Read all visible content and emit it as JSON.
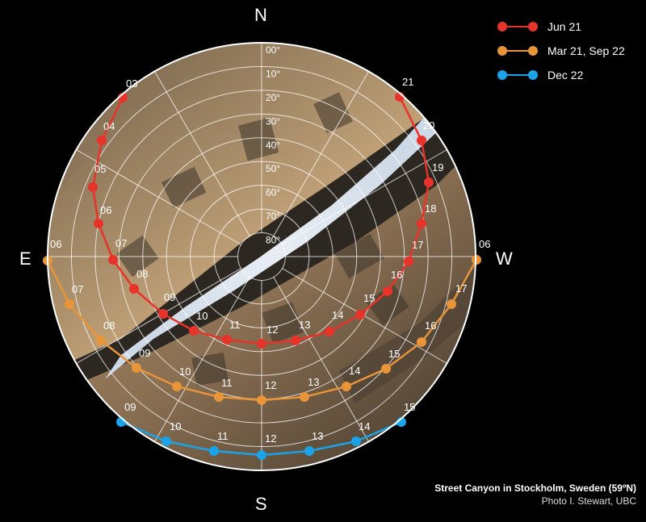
{
  "compass": {
    "north": "N",
    "south": "S",
    "east": "E",
    "west": "W"
  },
  "altitude_labels": [
    "00°",
    "10°",
    "20°",
    "30°",
    "40°",
    "50°",
    "60°",
    "70°",
    "80°"
  ],
  "legend": [
    {
      "label": "Jun 21",
      "color": "#e8332b"
    },
    {
      "label": "Mar 21, Sep 22",
      "color": "#e8953a"
    },
    {
      "label": "Dec 22",
      "color": "#1aa3e8"
    }
  ],
  "sun_paths": {
    "jun": {
      "color": "#e8332b",
      "hours": [
        "03",
        "04",
        "05",
        "06",
        "07",
        "08",
        "09",
        "10",
        "11",
        "12",
        "13",
        "14",
        "15",
        "16",
        "17",
        "18",
        "19",
        "20",
        "21"
      ]
    },
    "equinox": {
      "color": "#e8953a",
      "hours": [
        "06",
        "07",
        "08",
        "09",
        "10",
        "11",
        "12",
        "13",
        "14",
        "15",
        "16",
        "17",
        "06"
      ]
    },
    "dec": {
      "color": "#1aa3e8",
      "hours": [
        "09",
        "10",
        "11",
        "12",
        "13",
        "14",
        "15"
      ]
    }
  },
  "caption": {
    "title": "Street Canyon in Stockholm, Sweden (59ºN)",
    "credit": "Photo I. Stewart, UBC"
  }
}
